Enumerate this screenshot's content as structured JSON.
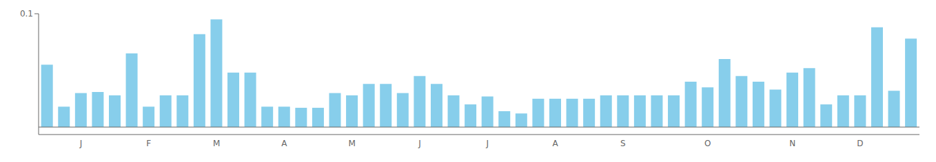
{
  "chart_data": {
    "type": "bar",
    "categories": [
      null,
      null,
      "J",
      null,
      null,
      null,
      "F",
      null,
      null,
      null,
      "M",
      null,
      null,
      null,
      "A",
      null,
      null,
      null,
      "M",
      null,
      null,
      null,
      "J",
      null,
      null,
      null,
      "J",
      null,
      null,
      null,
      "A",
      null,
      null,
      null,
      "S",
      null,
      null,
      null,
      null,
      "O",
      null,
      null,
      null,
      null,
      "N",
      null,
      null,
      null,
      "D",
      null,
      null,
      null
    ],
    "values": [
      0.055,
      0.018,
      0.03,
      0.031,
      0.028,
      0.065,
      0.018,
      0.028,
      0.028,
      0.082,
      0.095,
      0.048,
      0.048,
      0.018,
      0.018,
      0.017,
      0.017,
      0.03,
      0.028,
      0.038,
      0.038,
      0.03,
      0.045,
      0.038,
      0.028,
      0.02,
      0.027,
      0.014,
      0.012,
      0.025,
      0.025,
      0.025,
      0.025,
      0.028,
      0.028,
      0.028,
      0.028,
      0.028,
      0.04,
      0.035,
      0.06,
      0.045,
      0.04,
      0.033,
      0.048,
      0.052,
      0.02,
      0.028,
      0.028,
      0.088,
      0.032,
      0.078
    ],
    "color": "#87ceeb",
    "ylim": [
      -0.0066,
      0.1
    ],
    "yticks": [
      0.1
    ],
    "grid": false
  }
}
